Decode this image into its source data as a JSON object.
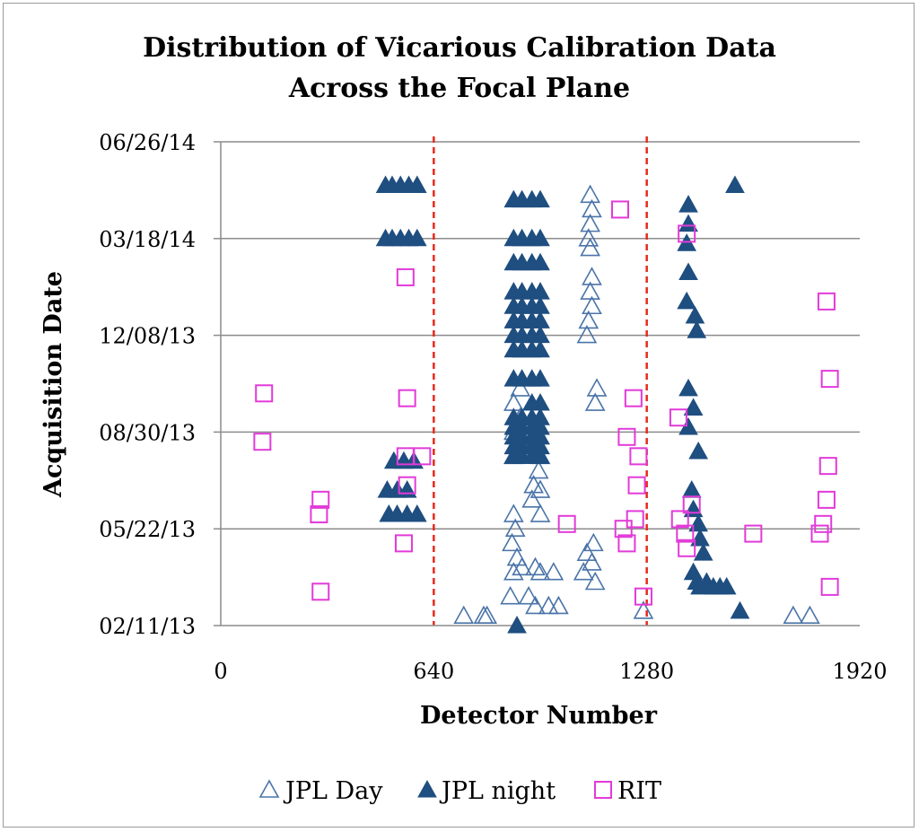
{
  "chart_data": {
    "type": "scatter",
    "title_lines": [
      "Distribution of Vicarious Calibration Data",
      "Across the Focal Plane"
    ],
    "xlabel": "Detector Number",
    "ylabel": "Acquisition Date",
    "xlim": [
      0,
      1920
    ],
    "xticks": [
      0,
      640,
      1280,
      1920
    ],
    "xtick_labels": [
      "0",
      "640",
      "1280",
      "1920"
    ],
    "ylim": [
      0,
      5
    ],
    "yticks": [
      0,
      1,
      2,
      3,
      4,
      5
    ],
    "ytick_labels": [
      "02/11/13",
      "05/22/13",
      "08/30/13",
      "12/08/13",
      "03/18/14",
      "06/26/14"
    ],
    "grid": "horizontal",
    "reference_lines": {
      "x": [
        640,
        1280
      ],
      "color": "#e8291c",
      "style": "dashed"
    },
    "legend_position": "bottom",
    "series": [
      {
        "name": "JPL Day",
        "marker": "triangle-open",
        "color": "#4a74a8",
        "points": [
          [
            1110,
            4.45
          ],
          [
            1115,
            4.3
          ],
          [
            1110,
            4.15
          ],
          [
            1105,
            4.0
          ],
          [
            1110,
            3.9
          ],
          [
            1115,
            3.6
          ],
          [
            1110,
            3.45
          ],
          [
            1115,
            3.3
          ],
          [
            1105,
            3.15
          ],
          [
            1100,
            3.0
          ],
          [
            1130,
            2.45
          ],
          [
            1125,
            2.3
          ],
          [
            900,
            2.45
          ],
          [
            880,
            2.3
          ],
          [
            900,
            2.15
          ],
          [
            880,
            2.0
          ],
          [
            910,
            1.85
          ],
          [
            880,
            1.75
          ],
          [
            940,
            1.9
          ],
          [
            960,
            1.75
          ],
          [
            955,
            1.6
          ],
          [
            940,
            1.45
          ],
          [
            960,
            1.4
          ],
          [
            935,
            1.3
          ],
          [
            960,
            1.15
          ],
          [
            880,
            1.15
          ],
          [
            885,
            1.0
          ],
          [
            875,
            0.85
          ],
          [
            890,
            0.7
          ],
          [
            905,
            0.6
          ],
          [
            945,
            0.6
          ],
          [
            960,
            0.55
          ],
          [
            1000,
            0.55
          ],
          [
            880,
            0.55
          ],
          [
            1120,
            0.85
          ],
          [
            1100,
            0.75
          ],
          [
            1115,
            0.65
          ],
          [
            1090,
            0.55
          ],
          [
            1125,
            0.45
          ],
          [
            870,
            0.3
          ],
          [
            925,
            0.3
          ],
          [
            945,
            0.2
          ],
          [
            985,
            0.2
          ],
          [
            1015,
            0.2
          ],
          [
            730,
            0.1
          ],
          [
            790,
            0.1
          ],
          [
            800,
            0.1
          ],
          [
            1270,
            0.15
          ],
          [
            1720,
            0.1
          ],
          [
            1770,
            0.1
          ]
        ]
      },
      {
        "name": "JPL night",
        "marker": "triangle-filled",
        "color": "#1f4e80",
        "points": [
          [
            495,
            4.55
          ],
          [
            515,
            4.55
          ],
          [
            540,
            4.55
          ],
          [
            565,
            4.55
          ],
          [
            590,
            4.55
          ],
          [
            495,
            4.0
          ],
          [
            515,
            4.0
          ],
          [
            540,
            4.0
          ],
          [
            565,
            4.0
          ],
          [
            590,
            4.0
          ],
          [
            880,
            4.4
          ],
          [
            905,
            4.4
          ],
          [
            935,
            4.4
          ],
          [
            960,
            4.4
          ],
          [
            880,
            4.0
          ],
          [
            905,
            4.0
          ],
          [
            935,
            4.0
          ],
          [
            960,
            4.0
          ],
          [
            880,
            3.75
          ],
          [
            905,
            3.75
          ],
          [
            935,
            3.75
          ],
          [
            960,
            3.75
          ],
          [
            880,
            3.45
          ],
          [
            905,
            3.45
          ],
          [
            935,
            3.45
          ],
          [
            960,
            3.45
          ],
          [
            880,
            3.3
          ],
          [
            905,
            3.3
          ],
          [
            935,
            3.3
          ],
          [
            960,
            3.3
          ],
          [
            880,
            3.15
          ],
          [
            905,
            3.15
          ],
          [
            935,
            3.15
          ],
          [
            960,
            3.15
          ],
          [
            880,
            3.0
          ],
          [
            905,
            3.0
          ],
          [
            935,
            3.0
          ],
          [
            960,
            3.0
          ],
          [
            880,
            2.85
          ],
          [
            905,
            2.85
          ],
          [
            935,
            2.85
          ],
          [
            960,
            2.85
          ],
          [
            880,
            2.55
          ],
          [
            905,
            2.55
          ],
          [
            935,
            2.55
          ],
          [
            960,
            2.55
          ],
          [
            935,
            2.3
          ],
          [
            960,
            2.3
          ],
          [
            880,
            2.15
          ],
          [
            905,
            2.15
          ],
          [
            935,
            2.15
          ],
          [
            960,
            2.15
          ],
          [
            880,
            2.05
          ],
          [
            905,
            2.05
          ],
          [
            935,
            2.05
          ],
          [
            960,
            2.05
          ],
          [
            880,
            1.95
          ],
          [
            905,
            1.95
          ],
          [
            935,
            1.95
          ],
          [
            960,
            1.95
          ],
          [
            880,
            1.85
          ],
          [
            905,
            1.85
          ],
          [
            935,
            1.85
          ],
          [
            960,
            1.85
          ],
          [
            880,
            1.75
          ],
          [
            905,
            1.75
          ],
          [
            935,
            1.75
          ],
          [
            960,
            1.75
          ],
          [
            520,
            1.7
          ],
          [
            550,
            1.7
          ],
          [
            580,
            1.7
          ],
          [
            500,
            1.4
          ],
          [
            530,
            1.4
          ],
          [
            560,
            1.4
          ],
          [
            505,
            1.15
          ],
          [
            530,
            1.15
          ],
          [
            560,
            1.15
          ],
          [
            590,
            1.15
          ],
          [
            890,
            0.0
          ],
          [
            1545,
            4.55
          ],
          [
            1405,
            4.35
          ],
          [
            1405,
            4.15
          ],
          [
            1400,
            3.95
          ],
          [
            1405,
            3.65
          ],
          [
            1400,
            3.35
          ],
          [
            1425,
            3.2
          ],
          [
            1430,
            3.05
          ],
          [
            1405,
            2.45
          ],
          [
            1420,
            2.25
          ],
          [
            1405,
            2.05
          ],
          [
            1435,
            1.8
          ],
          [
            1415,
            1.4
          ],
          [
            1420,
            1.2
          ],
          [
            1435,
            1.05
          ],
          [
            1440,
            0.9
          ],
          [
            1450,
            0.75
          ],
          [
            1420,
            0.55
          ],
          [
            1430,
            0.45
          ],
          [
            1440,
            0.4
          ],
          [
            1460,
            0.45
          ],
          [
            1480,
            0.4
          ],
          [
            1500,
            0.4
          ],
          [
            1520,
            0.4
          ],
          [
            1560,
            0.15
          ]
        ]
      },
      {
        "name": "RIT",
        "marker": "square-open",
        "color": "#e23ad9",
        "points": [
          [
            130,
            2.4
          ],
          [
            125,
            1.9
          ],
          [
            300,
            1.3
          ],
          [
            295,
            1.15
          ],
          [
            300,
            0.35
          ],
          [
            555,
            3.6
          ],
          [
            560,
            2.35
          ],
          [
            555,
            1.75
          ],
          [
            560,
            1.45
          ],
          [
            550,
            0.85
          ],
          [
            605,
            1.75
          ],
          [
            1040,
            1.05
          ],
          [
            1200,
            4.3
          ],
          [
            1240,
            2.35
          ],
          [
            1220,
            1.95
          ],
          [
            1255,
            1.75
          ],
          [
            1250,
            1.45
          ],
          [
            1245,
            1.1
          ],
          [
            1210,
            1.0
          ],
          [
            1220,
            0.85
          ],
          [
            1270,
            0.3
          ],
          [
            1375,
            2.15
          ],
          [
            1400,
            4.05
          ],
          [
            1380,
            1.1
          ],
          [
            1395,
            0.95
          ],
          [
            1400,
            0.8
          ],
          [
            1415,
            1.25
          ],
          [
            1600,
            0.95
          ],
          [
            1820,
            3.35
          ],
          [
            1830,
            2.55
          ],
          [
            1825,
            1.65
          ],
          [
            1820,
            1.3
          ],
          [
            1810,
            1.05
          ],
          [
            1800,
            0.95
          ],
          [
            1830,
            0.4
          ]
        ]
      }
    ]
  }
}
